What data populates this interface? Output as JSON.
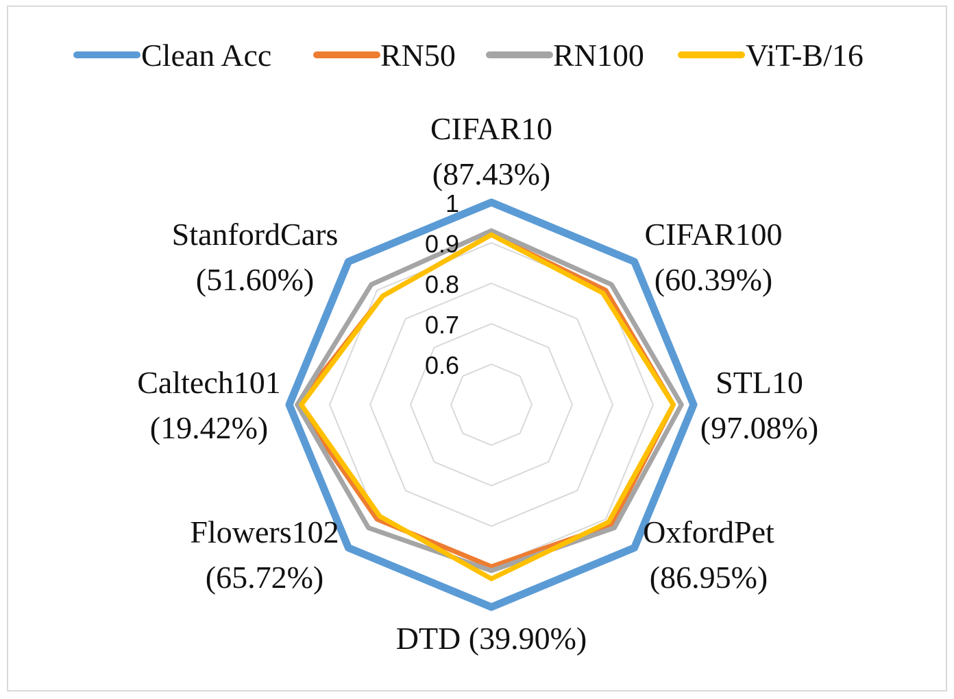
{
  "chart_data": {
    "type": "radar",
    "title": "",
    "categories": [
      {
        "name": "CIFAR10",
        "acc": "(87.43%)"
      },
      {
        "name": "CIFAR100",
        "acc": "(60.39%)"
      },
      {
        "name": "STL10",
        "acc": "(97.08%)"
      },
      {
        "name": "OxfordPet",
        "acc": "(86.95%)"
      },
      {
        "name": "DTD",
        "acc": "(39.90%)"
      },
      {
        "name": "Flowers102",
        "acc": "(65.72%)"
      },
      {
        "name": "Caltech101",
        "acc": "(19.42%)"
      },
      {
        "name": "StanfordCars",
        "acc": "(51.60%)"
      }
    ],
    "rlim": [
      0.5,
      1.0
    ],
    "ticks": [
      0.6,
      0.7,
      0.8,
      0.9,
      1
    ],
    "tick_labels": [
      "0.6",
      "0.7",
      "0.8",
      "0.9",
      "1"
    ],
    "legend_position": "top",
    "series": [
      {
        "name": "Clean Acc",
        "color": "#5B9BD5",
        "values": [
          1.0,
          1.0,
          1.0,
          1.0,
          1.0,
          1.0,
          1.0,
          1.0
        ]
      },
      {
        "name": "RN50",
        "color": "#ED7D31",
        "values": [
          0.92,
          0.9,
          0.95,
          0.92,
          0.9,
          0.9,
          0.98,
          0.88
        ]
      },
      {
        "name": "RN100",
        "color": "#A5A5A5",
        "values": [
          0.93,
          0.92,
          0.97,
          0.93,
          0.91,
          0.93,
          0.98,
          0.92
        ]
      },
      {
        "name": "ViT-B/16",
        "color": "#FFC000",
        "values": [
          0.92,
          0.89,
          0.95,
          0.91,
          0.93,
          0.89,
          0.97,
          0.88
        ]
      }
    ]
  }
}
